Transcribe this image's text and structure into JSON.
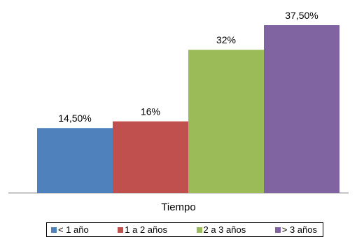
{
  "chart_data": {
    "type": "bar",
    "xlabel": "Tiempo",
    "ylim": [
      0,
      40
    ],
    "grid": false,
    "legend_position": "bottom",
    "series": [
      {
        "name": "< 1 año",
        "value": 14.5,
        "label": "14,50%",
        "color": "#4F81BD"
      },
      {
        "name": "1 a 2 años",
        "value": 16,
        "label": "16%",
        "color": "#C0504D"
      },
      {
        "name": "2 a 3 años",
        "value": 32,
        "label": "32%",
        "color": "#9BBB59"
      },
      {
        "name": "> 3 años",
        "value": 37.5,
        "label": "37,50%",
        "color": "#8064A2"
      }
    ]
  }
}
